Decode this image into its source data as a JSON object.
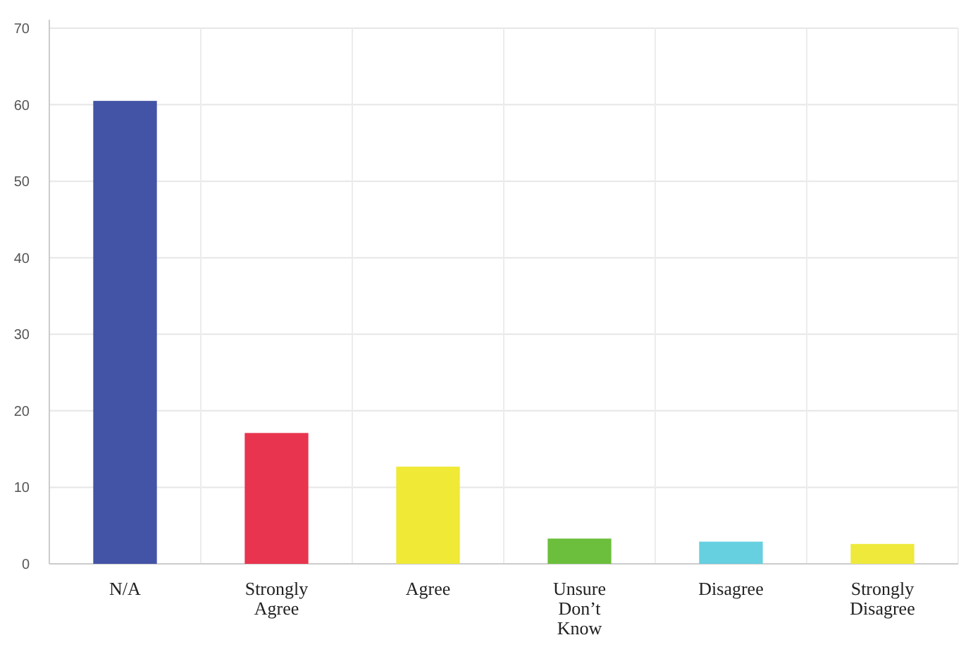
{
  "chart_data": {
    "type": "bar",
    "categories": [
      "N/A",
      "Strongly Agree",
      "Agree",
      "Unsure Don’t Know",
      "Disagree",
      "Strongly Disagree"
    ],
    "values": [
      60.5,
      17.1,
      12.7,
      3.3,
      2.9,
      2.6
    ],
    "colors": [
      "#4353a5",
      "#e8344e",
      "#f0e936",
      "#6cbf3c",
      "#66cfe0",
      "#eee93a"
    ],
    "ylim": [
      0,
      70
    ],
    "yticks": [
      0,
      10,
      20,
      30,
      40,
      50,
      60,
      70
    ],
    "grid": true
  }
}
